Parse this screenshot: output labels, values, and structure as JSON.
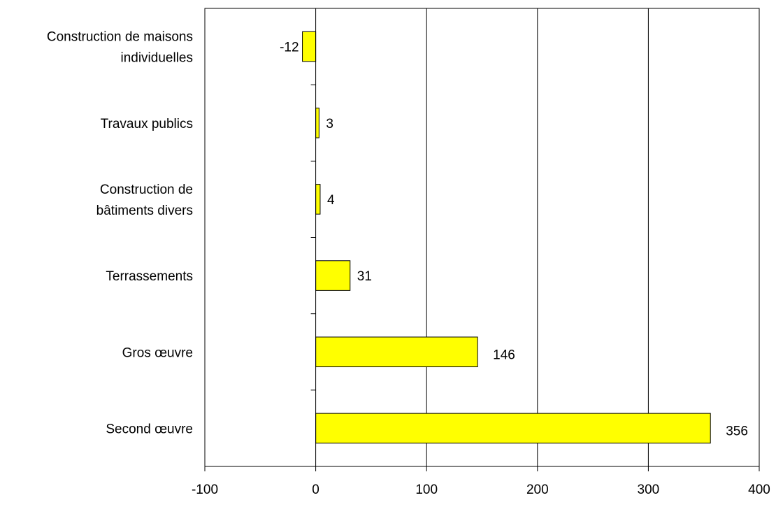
{
  "chart_data": {
    "type": "bar",
    "orientation": "horizontal",
    "title": "",
    "xlabel": "",
    "ylabel": "",
    "categories": [
      [
        "Construction de maisons",
        "individuelles"
      ],
      [
        "Travaux publics"
      ],
      [
        "Construction de",
        "bâtiments divers"
      ],
      [
        "Terrassements"
      ],
      [
        "Gros œuvre"
      ],
      [
        "Second œuvre"
      ]
    ],
    "values": [
      -12,
      3,
      4,
      31,
      146,
      356
    ],
    "data_labels": [
      "-12",
      "3",
      "4",
      "31",
      "146",
      "356"
    ],
    "xlim": [
      -100,
      400
    ],
    "xticks": [
      -100,
      0,
      100,
      200,
      300,
      400
    ],
    "xtick_labels": [
      "-100",
      "0",
      "100",
      "200",
      "300",
      "400"
    ],
    "grid": "vertical",
    "legend": "none",
    "colors": {
      "bar_fill": "#FFFF00",
      "bar_stroke": "#000000",
      "axis": "#000000",
      "grid": "#000000"
    }
  }
}
